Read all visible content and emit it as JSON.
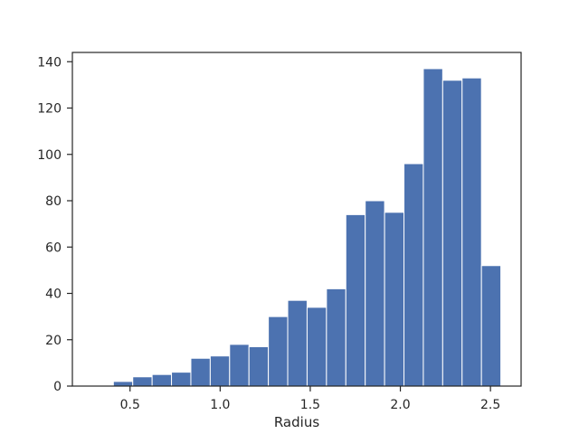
{
  "chart_data": {
    "type": "bar",
    "title": "",
    "xlabel": "Radius",
    "ylabel": "",
    "bin_start": 0.3,
    "bin_width": 0.1075,
    "values": [
      0,
      2,
      4,
      5,
      6,
      12,
      13,
      18,
      17,
      30,
      37,
      34,
      42,
      74,
      80,
      75,
      96,
      137,
      132,
      133,
      52
    ],
    "xlim": [
      0.18,
      2.67
    ],
    "ylim": [
      0,
      144
    ],
    "xticks": [
      0.5,
      1.0,
      1.5,
      2.0,
      2.5
    ],
    "xtick_labels": [
      "0.5",
      "1.0",
      "1.5",
      "2.0",
      "2.5"
    ],
    "yticks": [
      0,
      20,
      40,
      60,
      80,
      100,
      120,
      140
    ],
    "ytick_labels": [
      "0",
      "20",
      "40",
      "60",
      "80",
      "100",
      "120",
      "140"
    ],
    "grid": false,
    "bar_color": "#4c72b0",
    "edge_color": "#ffffff"
  }
}
